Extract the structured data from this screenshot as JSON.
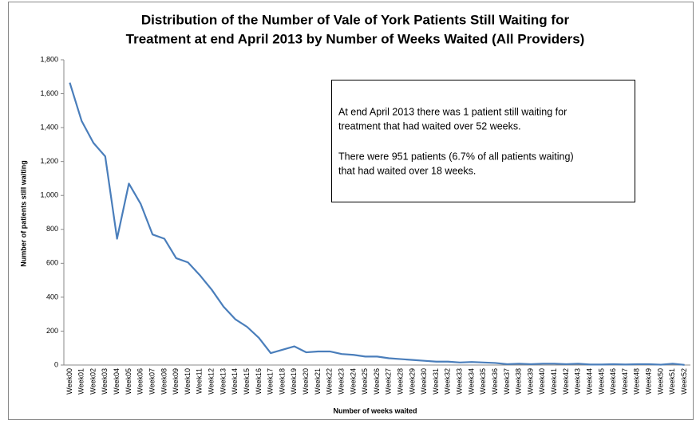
{
  "chart_data": {
    "type": "line",
    "title": [
      "Distribution of the Number of Vale of York Patients Still Waiting for",
      "Treatment at end April 2013 by Number of Weeks Waited (All Providers)"
    ],
    "x_label": "Number of weeks waited",
    "y_label": "Number of patients still waiting",
    "annotation": [
      "At end April 2013 there was 1 patient still waiting for",
      "treatment that had waited over 52 weeks.",
      "There were 951 patients (6.7% of all patients waiting)",
      "that had waited over 18 weeks."
    ],
    "categories": [
      "Week00",
      "Week01",
      "Week02",
      "Week03",
      "Week04",
      "Week05",
      "Week06",
      "Week07",
      "Week08",
      "Week09",
      "Week10",
      "Week11",
      "Week12",
      "Week13",
      "Week14",
      "Week15",
      "Week16",
      "Week17",
      "Week18",
      "Week19",
      "Week20",
      "Week21",
      "Week22",
      "Week23",
      "Week24",
      "Week25",
      "Week26",
      "Week27",
      "Week28",
      "Week29",
      "Week30",
      "Week31",
      "Week32",
      "Week33",
      "Week34",
      "Week35",
      "Week36",
      "Week37",
      "Week38",
      "Week39",
      "Week40",
      "Week41",
      "Week42",
      "Week43",
      "Week44",
      "Week45",
      "Week46",
      "Week47",
      "Week48",
      "Week49",
      "Week50",
      "Week51",
      "Week52"
    ],
    "series": [
      {
        "color": "#4a7ebb",
        "values": [
          1665,
          1440,
          1310,
          1230,
          745,
          1070,
          950,
          770,
          745,
          630,
          605,
          530,
          445,
          345,
          270,
          225,
          160,
          70,
          90,
          110,
          75,
          80,
          80,
          65,
          60,
          50,
          50,
          40,
          35,
          30,
          25,
          20,
          20,
          15,
          18,
          15,
          12,
          5,
          8,
          5,
          8,
          8,
          5,
          8,
          3,
          3,
          5,
          3,
          5,
          5,
          2,
          8,
          1
        ]
      }
    ],
    "ylim": [
      0,
      1800
    ],
    "yticks": [
      0,
      200,
      400,
      600,
      800,
      {
        "value": 1000,
        "label": "1,000"
      },
      {
        "value": 1200,
        "label": "1,200"
      },
      {
        "value": 1400,
        "label": "1,400"
      },
      {
        "value": 1600,
        "label": "1,600"
      },
      {
        "value": 1800,
        "label": "1,800"
      }
    ],
    "grid": false
  }
}
